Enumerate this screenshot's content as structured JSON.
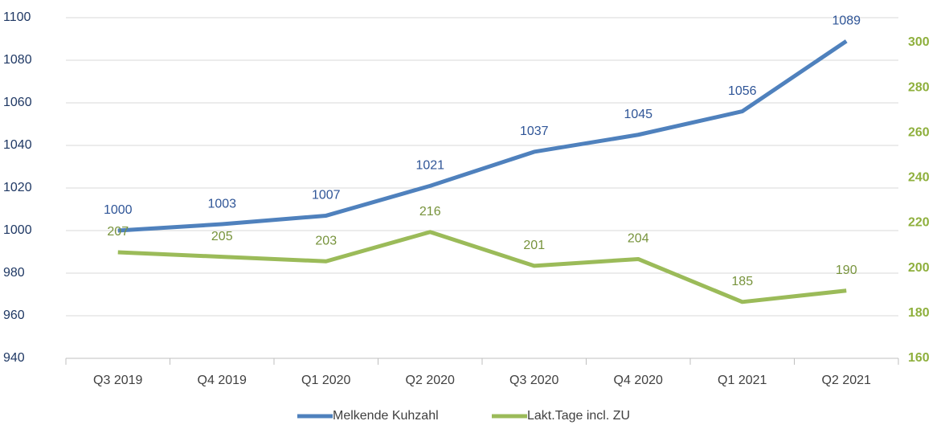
{
  "chart_data": {
    "type": "line",
    "categories": [
      "Q3 2019",
      "Q4 2019",
      "Q1 2020",
      "Q2 2020",
      "Q3 2020",
      "Q4 2020",
      "Q1 2021",
      "Q2 2021"
    ],
    "series": [
      {
        "name": "Melkende Kuhzahl",
        "color": "#4f81bd",
        "values": [
          1000,
          1003,
          1007,
          1021,
          1037,
          1045,
          1056,
          1089
        ]
      },
      {
        "name": "Lakt.Tage incl. ZU",
        "color": "#9bbb59",
        "axis": "y2",
        "values": [
          207,
          205,
          203,
          216,
          201,
          204,
          185,
          190
        ]
      }
    ],
    "ylim": [
      940,
      1100
    ],
    "yticks": [
      940,
      960,
      980,
      1000,
      1020,
      1040,
      1060,
      1080,
      1100
    ],
    "y2lim": [
      160,
      311
    ],
    "y2ticks": [
      160,
      180,
      200,
      220,
      240,
      260,
      280,
      300
    ],
    "grid": true,
    "legend": "bottom"
  }
}
